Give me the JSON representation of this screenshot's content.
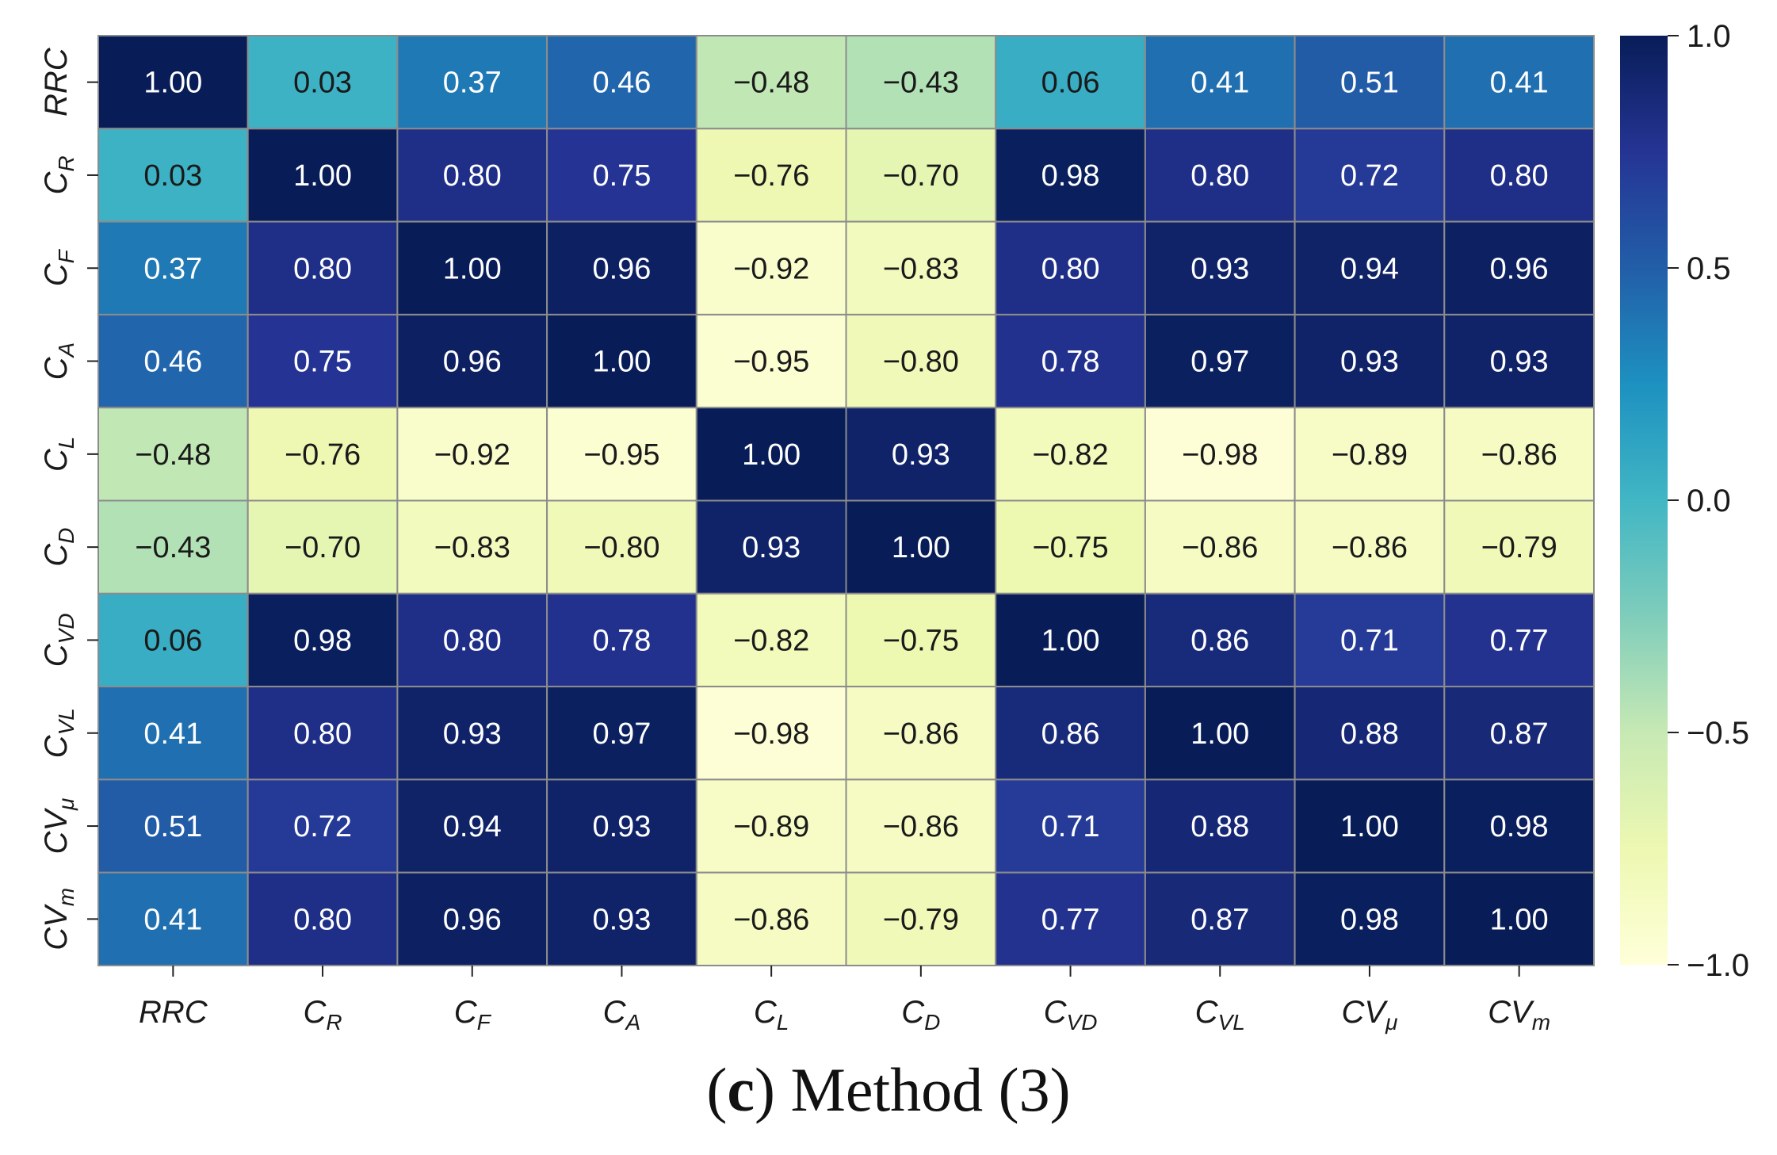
{
  "chart_data": {
    "type": "heatmap",
    "title": "",
    "row_labels": [
      {
        "base": "RRC",
        "sub": ""
      },
      {
        "base": "C",
        "sub": "R"
      },
      {
        "base": "C",
        "sub": "F"
      },
      {
        "base": "C",
        "sub": "A"
      },
      {
        "base": "C",
        "sub": "L"
      },
      {
        "base": "C",
        "sub": "D"
      },
      {
        "base": "C",
        "sub": "VD"
      },
      {
        "base": "C",
        "sub": "VL"
      },
      {
        "base": "CV",
        "sub": "μ"
      },
      {
        "base": "CV",
        "sub": "m"
      }
    ],
    "col_labels": [
      {
        "base": "RRC",
        "sub": ""
      },
      {
        "base": "C",
        "sub": "R"
      },
      {
        "base": "C",
        "sub": "F"
      },
      {
        "base": "C",
        "sub": "A"
      },
      {
        "base": "C",
        "sub": "L"
      },
      {
        "base": "C",
        "sub": "D"
      },
      {
        "base": "C",
        "sub": "VD"
      },
      {
        "base": "C",
        "sub": "VL"
      },
      {
        "base": "CV",
        "sub": "μ"
      },
      {
        "base": "CV",
        "sub": "m"
      }
    ],
    "values": [
      [
        1.0,
        0.03,
        0.37,
        0.46,
        -0.48,
        -0.43,
        0.06,
        0.41,
        0.51,
        0.41
      ],
      [
        0.03,
        1.0,
        0.8,
        0.75,
        -0.76,
        -0.7,
        0.98,
        0.8,
        0.72,
        0.8
      ],
      [
        0.37,
        0.8,
        1.0,
        0.96,
        -0.92,
        -0.83,
        0.8,
        0.93,
        0.94,
        0.96
      ],
      [
        0.46,
        0.75,
        0.96,
        1.0,
        -0.95,
        -0.8,
        0.78,
        0.97,
        0.93,
        0.93
      ],
      [
        -0.48,
        -0.76,
        -0.92,
        -0.95,
        1.0,
        0.93,
        -0.82,
        -0.98,
        -0.89,
        -0.86
      ],
      [
        -0.43,
        -0.7,
        -0.83,
        -0.8,
        0.93,
        1.0,
        -0.75,
        -0.86,
        -0.86,
        -0.79
      ],
      [
        0.06,
        0.98,
        0.8,
        0.78,
        -0.82,
        -0.75,
        1.0,
        0.86,
        0.71,
        0.77
      ],
      [
        0.41,
        0.8,
        0.93,
        0.97,
        -0.98,
        -0.86,
        0.86,
        1.0,
        0.88,
        0.87
      ],
      [
        0.51,
        0.72,
        0.94,
        0.93,
        -0.89,
        -0.86,
        0.71,
        0.88,
        1.0,
        0.98
      ],
      [
        0.41,
        0.8,
        0.96,
        0.93,
        -0.86,
        -0.79,
        0.77,
        0.87,
        0.98,
        1.0
      ]
    ],
    "colormap": "YlGnBu",
    "vmin": -1.0,
    "vmax": 1.0,
    "colorbar_ticks": [
      1.0,
      0.5,
      0.0,
      -0.5,
      -1.0
    ],
    "colorbar_tick_labels": [
      "1.0",
      "0.5",
      "0.0",
      "−0.5",
      "−1.0"
    ],
    "value_format": "2dp-unicode-minus"
  },
  "caption": {
    "letter": "c",
    "text": "Method (3)"
  },
  "colors": {
    "cell_border": "#8c8c8c",
    "text_light": "#ffffff",
    "text_dark": "#1a1a1a",
    "cmap_stops": [
      "#ffffd9",
      "#edf8b1",
      "#c7e9b4",
      "#7fcdbb",
      "#41b6c4",
      "#1d91c0",
      "#225ea8",
      "#253494",
      "#081d58"
    ]
  }
}
